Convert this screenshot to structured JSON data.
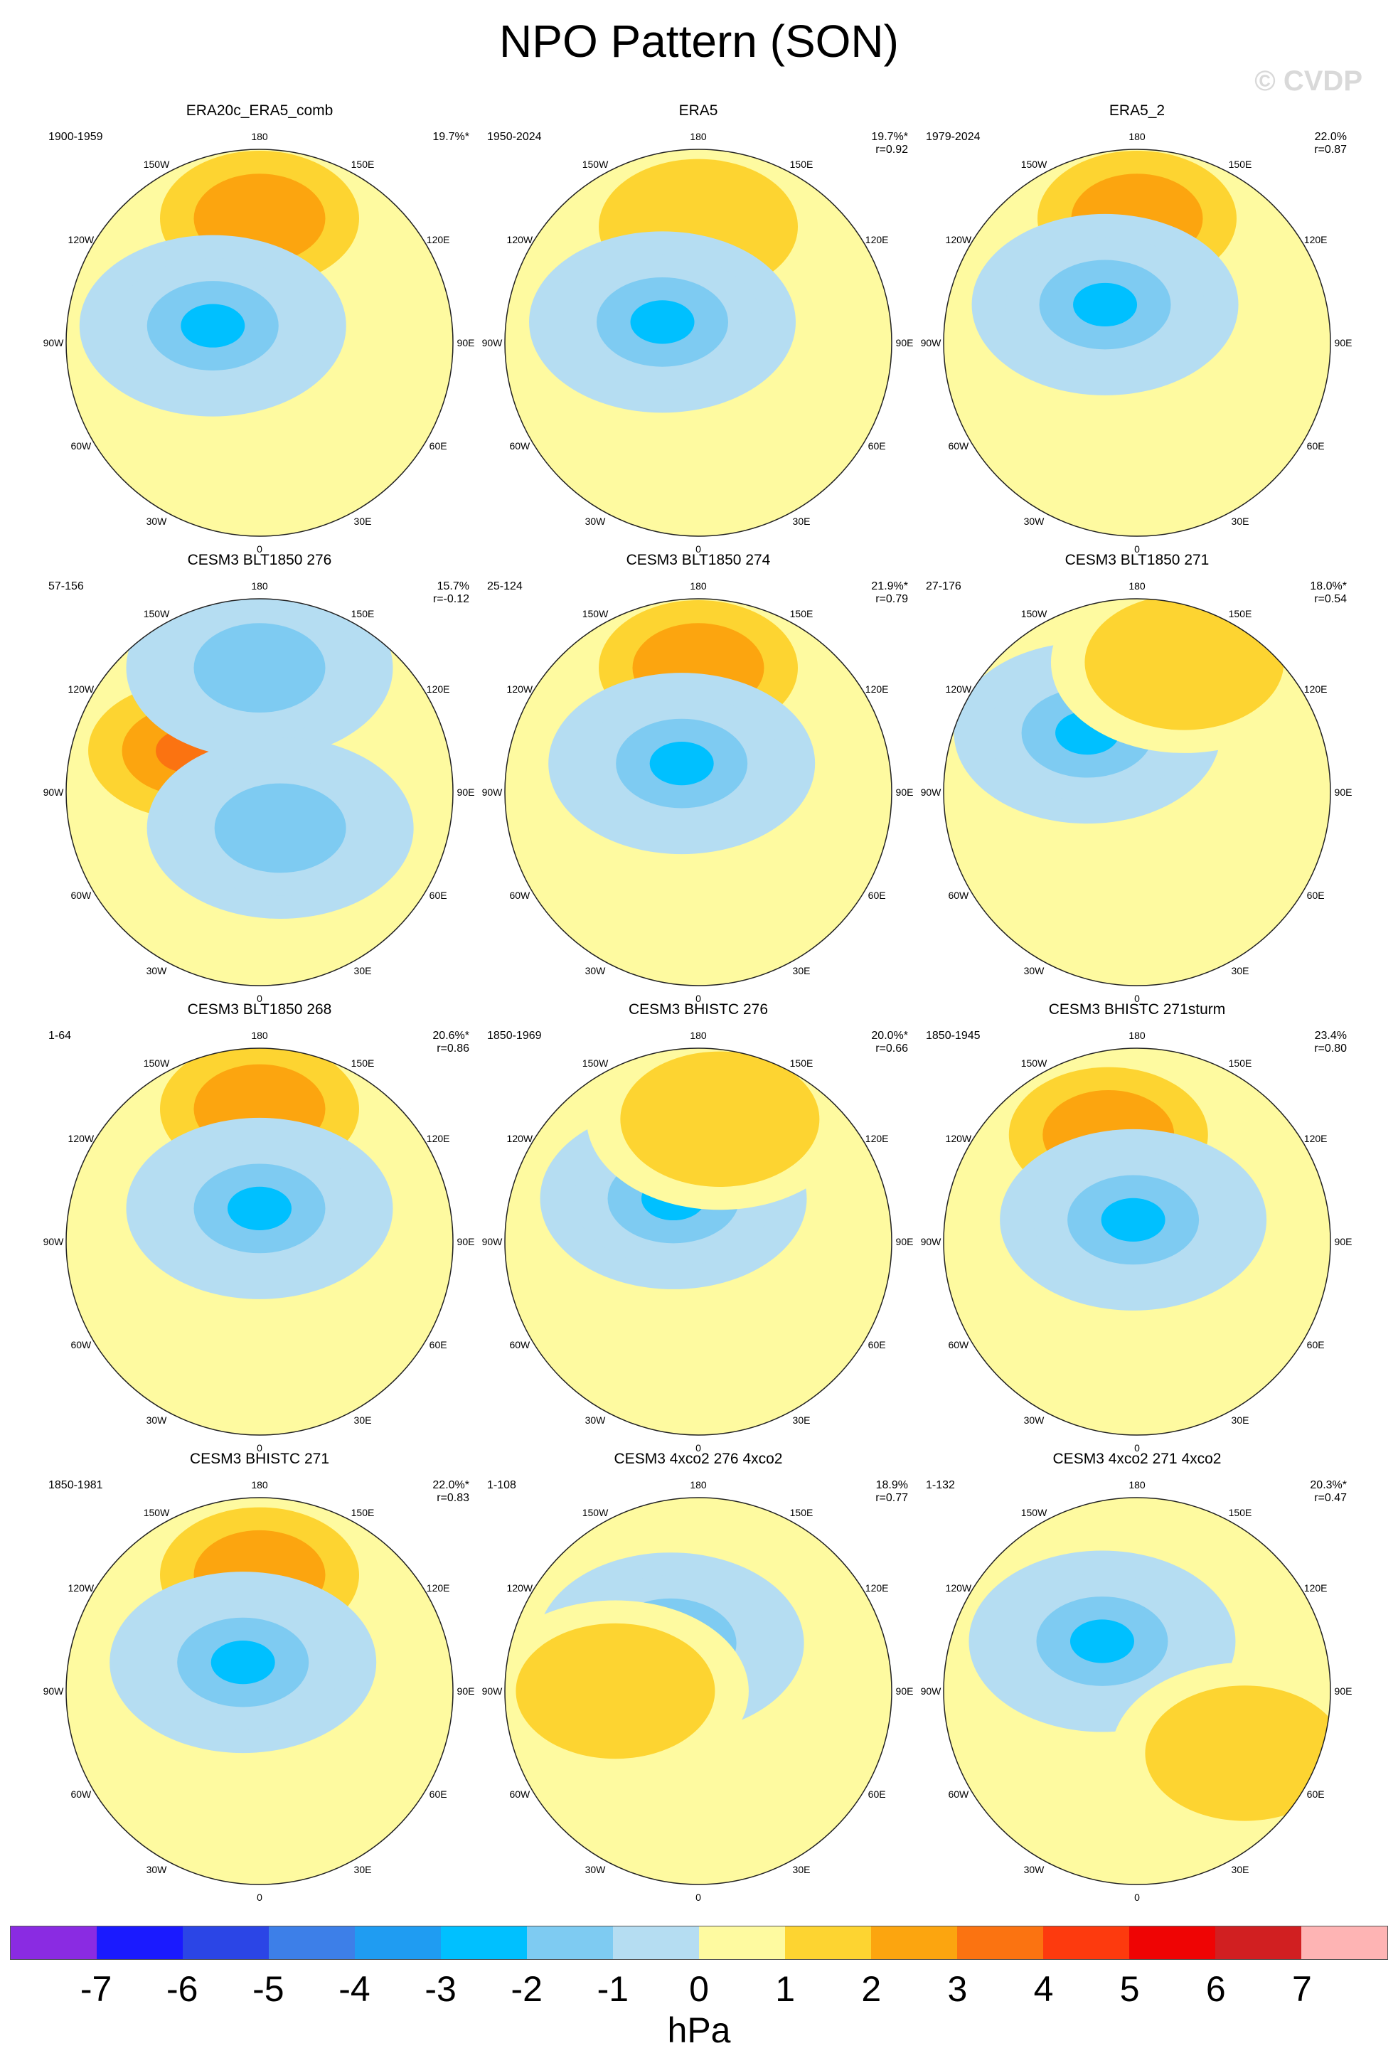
{
  "title": "NPO Pattern (SON)",
  "watermark": "© CVDP",
  "longitude_labels": {
    "n": "180",
    "nne": "150E",
    "ene": "120E",
    "e": "90E",
    "ese": "60E",
    "sse": "30E",
    "s": "0",
    "ssw": "30W",
    "wsw": "60W",
    "w": "90W",
    "wnw": "120W",
    "nnw": "150W"
  },
  "panels": [
    {
      "title": "ERA20c_ERA5_comb",
      "years": "1900-1959",
      "pct": "19.7%*",
      "r": "",
      "centers": [
        {
          "lon": 180,
          "lat": 45,
          "v": 2
        },
        {
          "lon": 110,
          "lat": 72,
          "v": -3
        }
      ]
    },
    {
      "title": "ERA5",
      "years": "1950-2024",
      "pct": "19.7%*",
      "r": "r=0.92",
      "centers": [
        {
          "lon": 180,
          "lat": 48,
          "v": 1
        },
        {
          "lon": 120,
          "lat": 75,
          "v": -3
        }
      ]
    },
    {
      "title": "ERA5_2",
      "years": "1979-2024",
      "pct": "22.0%",
      "r": "r=0.87",
      "centers": [
        {
          "lon": 180,
          "lat": 45,
          "v": 2
        },
        {
          "lon": 140,
          "lat": 72,
          "v": -3
        }
      ]
    },
    {
      "title": "CESM3 BLT1850 276",
      "years": "57-156",
      "pct": "15.7%",
      "r": "r=-0.12",
      "centers": [
        {
          "lon": 120,
          "lat": 60,
          "v": 3
        },
        {
          "lon": 180,
          "lat": 45,
          "v": -2
        },
        {
          "lon": 330,
          "lat": 75,
          "v": -2
        }
      ]
    },
    {
      "title": "CESM3 BLT1850 274",
      "years": "25-124",
      "pct": "21.9%*",
      "r": "r=0.79",
      "centers": [
        {
          "lon": 180,
          "lat": 45,
          "v": 2
        },
        {
          "lon": 150,
          "lat": 78,
          "v": -3
        }
      ]
    },
    {
      "title": "CESM3 BLT1850 271",
      "years": "27-176",
      "pct": "18.0%*",
      "r": "r=0.54",
      "centers": [
        {
          "lon": 140,
          "lat": 62,
          "v": -3
        },
        {
          "lon": 200,
          "lat": 40,
          "v": 1
        }
      ]
    },
    {
      "title": "CESM3 BLT1850 268",
      "years": "1-64",
      "pct": "20.6%*",
      "r": "r=0.86",
      "centers": [
        {
          "lon": 180,
          "lat": 42,
          "v": 2
        },
        {
          "lon": 180,
          "lat": 78,
          "v": -3
        }
      ]
    },
    {
      "title": "CESM3 BHISTC 276",
      "years": "1850-1969",
      "pct": "20.0%*",
      "r": "r=0.66",
      "centers": [
        {
          "lon": 150,
          "lat": 72,
          "v": -3
        },
        {
          "lon": 190,
          "lat": 45,
          "v": 1
        }
      ]
    },
    {
      "title": "CESM3 BHISTC 271sturm",
      "years": "1850-1945",
      "pct": "23.4%",
      "r": "r=0.80",
      "centers": [
        {
          "lon": 165,
          "lat": 50,
          "v": 2
        },
        {
          "lon": 170,
          "lat": 82,
          "v": -3
        }
      ]
    },
    {
      "title": "CESM3 BHISTC 271",
      "years": "1850-1981",
      "pct": "22.0%*",
      "r": "r=0.83",
      "centers": [
        {
          "lon": 180,
          "lat": 48,
          "v": 2
        },
        {
          "lon": 150,
          "lat": 78,
          "v": -3
        }
      ]
    },
    {
      "title": "CESM3 4xco2 276 4xco2",
      "years": "1-108",
      "pct": "18.9%",
      "r": "r=0.77",
      "centers": [
        {
          "lon": 150,
          "lat": 70,
          "v": -3
        },
        {
          "lon": 90,
          "lat": 60,
          "v": 1
        }
      ]
    },
    {
      "title": "CESM3 4xco2 271 4xco2",
      "years": "1-132",
      "pct": "20.3%*",
      "r": "r=0.47",
      "centers": [
        {
          "lon": 145,
          "lat": 68,
          "v": -3
        },
        {
          "lon": 300,
          "lat": 45,
          "v": 1
        }
      ]
    }
  ],
  "colorbar": {
    "units": "hPa",
    "labels": [
      "-7",
      "-6",
      "-5",
      "-4",
      "-3",
      "-2",
      "-1",
      "0",
      "1",
      "2",
      "3",
      "4",
      "5",
      "6",
      "7"
    ],
    "colors": [
      "#8a2be2",
      "#1a1aff",
      "#2b45e6",
      "#3d7fe8",
      "#1f9cf2",
      "#00c0ff",
      "#7ecbf2",
      "#b5ddf2",
      "#fefaa0",
      "#fdd431",
      "#fca50f",
      "#fb7311",
      "#fd3a0e",
      "#ef0404",
      "#d11f21",
      "#feb4b4"
    ]
  }
}
